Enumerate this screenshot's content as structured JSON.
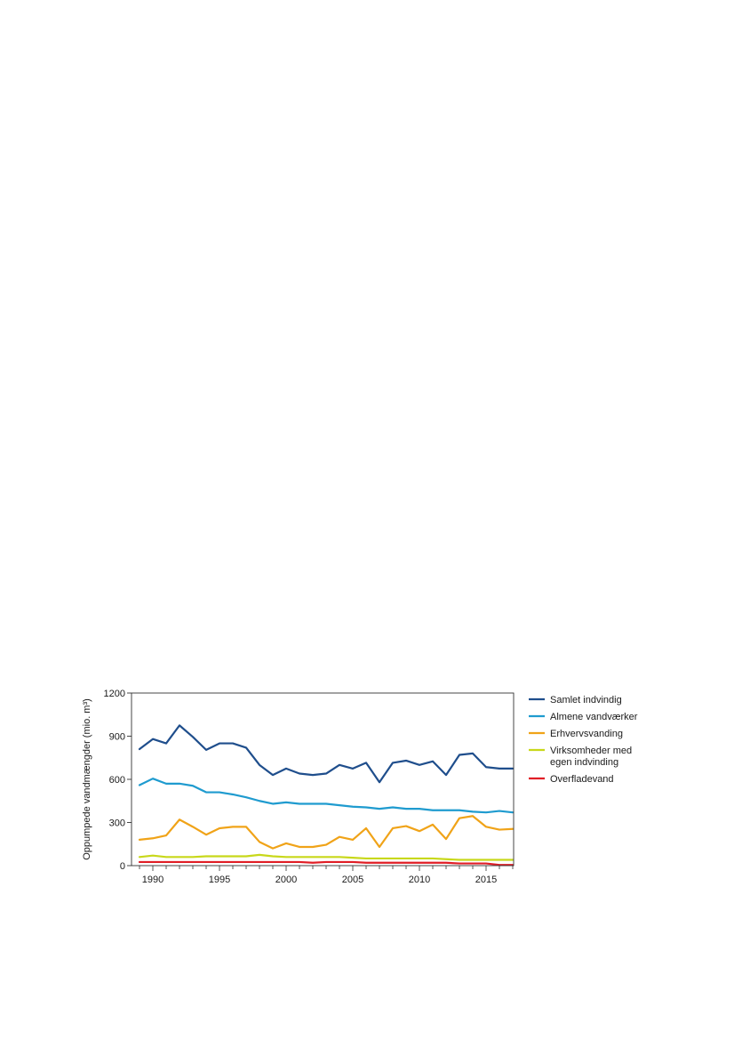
{
  "chart_data": {
    "type": "line",
    "ylabel": "Oppumpede vandmængder (mio. m³)",
    "ylim": [
      0,
      1200
    ],
    "yticks": [
      0,
      300,
      600,
      900,
      1200
    ],
    "xlim": [
      1989,
      2017
    ],
    "xticks": [
      1990,
      1995,
      2000,
      2005,
      2010,
      2015
    ],
    "x": [
      1989,
      1990,
      1991,
      1992,
      1993,
      1994,
      1995,
      1996,
      1997,
      1998,
      1999,
      2000,
      2001,
      2002,
      2003,
      2004,
      2005,
      2006,
      2007,
      2008,
      2009,
      2010,
      2011,
      2012,
      2013,
      2014,
      2015,
      2016,
      2017
    ],
    "legend_position": "right",
    "grid": false,
    "series": [
      {
        "name": "Samlet indvindig",
        "color": "#1f4e8c",
        "values": [
          810,
          880,
          850,
          975,
          895,
          805,
          850,
          850,
          820,
          700,
          630,
          675,
          640,
          630,
          640,
          700,
          675,
          715,
          580,
          715,
          730,
          700,
          725,
          630,
          770,
          780,
          685,
          675,
          675
        ]
      },
      {
        "name": "Almene vandværker",
        "color": "#1f9bcf",
        "values": [
          560,
          605,
          570,
          570,
          555,
          510,
          510,
          495,
          475,
          450,
          430,
          440,
          430,
          430,
          430,
          420,
          410,
          405,
          395,
          405,
          395,
          395,
          385,
          385,
          385,
          375,
          370,
          380,
          370
        ]
      },
      {
        "name": "Erhvervsvanding",
        "color": "#f0a318",
        "values": [
          180,
          190,
          210,
          320,
          270,
          215,
          260,
          270,
          270,
          165,
          120,
          155,
          130,
          130,
          145,
          200,
          180,
          260,
          130,
          260,
          275,
          240,
          285,
          185,
          330,
          345,
          270,
          250,
          255
        ]
      },
      {
        "name": "Virksomheder med egen indvinding",
        "name_lines": [
          "Virksomheder med",
          "egen indvinding"
        ],
        "color": "#c8d81a",
        "values": [
          60,
          70,
          60,
          60,
          60,
          65,
          65,
          65,
          65,
          75,
          65,
          60,
          60,
          60,
          60,
          60,
          55,
          50,
          50,
          50,
          50,
          50,
          50,
          45,
          40,
          40,
          40,
          40,
          40
        ]
      },
      {
        "name": "Overfladevand",
        "color": "#e01e26",
        "values": [
          25,
          25,
          25,
          25,
          25,
          25,
          25,
          25,
          25,
          25,
          25,
          25,
          25,
          20,
          25,
          25,
          25,
          20,
          20,
          20,
          20,
          20,
          20,
          20,
          15,
          15,
          15,
          5,
          5
        ]
      }
    ]
  }
}
